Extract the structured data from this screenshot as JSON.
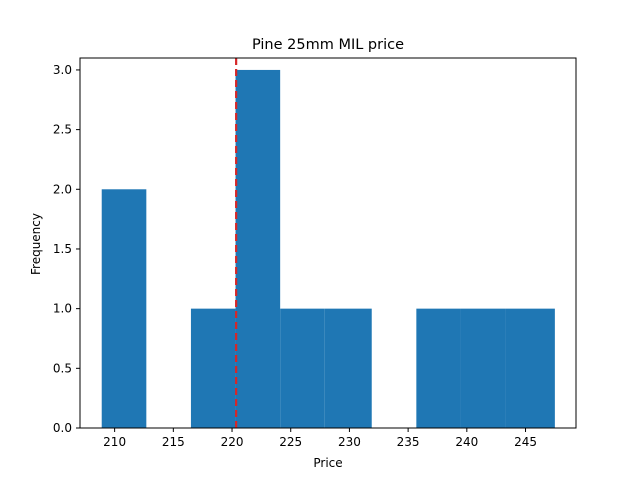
{
  "chart_data": {
    "type": "bar",
    "title": "Pine 25mm MIL price",
    "xlabel": "Price",
    "ylabel": "Frequency",
    "xlim": [
      207.05,
      249.3
    ],
    "ylim": [
      0,
      3.1
    ],
    "bin_edges": [
      208.9,
      212.7,
      216.5,
      220.3,
      224.1,
      227.9,
      231.9,
      235.7,
      239.5,
      243.3,
      247.5
    ],
    "values": [
      2,
      0,
      1,
      3,
      1,
      1,
      0,
      1,
      1,
      1
    ],
    "reference_line": {
      "x": 220.35,
      "style": "dashed",
      "color": "#d62728"
    },
    "x_ticks": [
      210,
      215,
      220,
      225,
      230,
      235,
      240,
      245
    ],
    "x_tick_labels": [
      "210",
      "215",
      "220",
      "225",
      "230",
      "235",
      "240",
      "245"
    ],
    "y_ticks": [
      0.0,
      0.5,
      1.0,
      1.5,
      2.0,
      2.5,
      3.0
    ],
    "y_tick_labels": [
      "0.0",
      "0.5",
      "1.0",
      "1.5",
      "2.0",
      "2.5",
      "3.0"
    ],
    "bar_color": "#1f77b4",
    "grid": false,
    "legend": "none"
  }
}
